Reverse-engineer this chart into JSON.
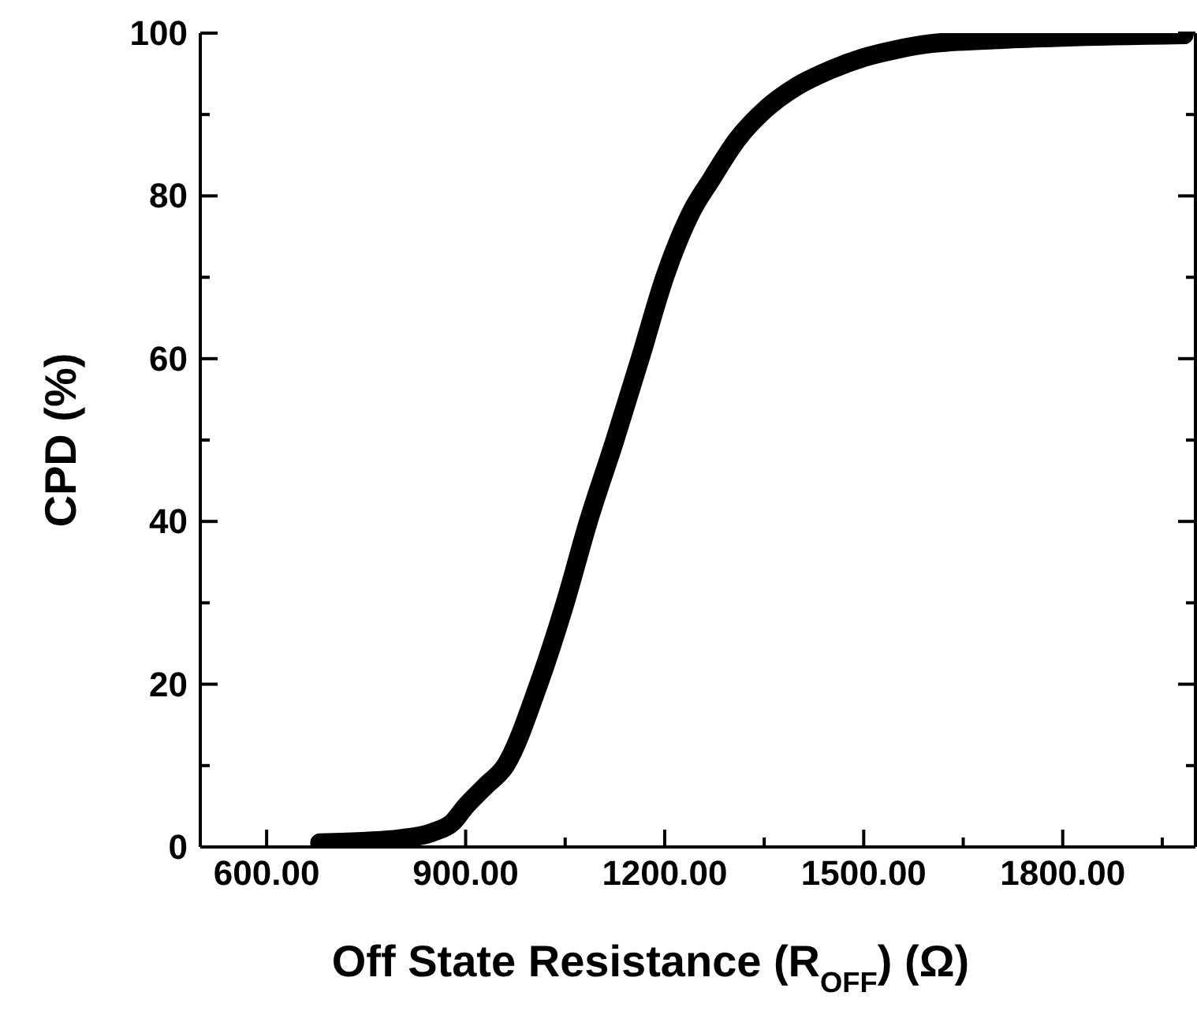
{
  "chart_data": {
    "type": "line",
    "xlabel": "Off State Resistance (R$_{OFF}$) (Ω)",
    "ylabel": "CPD (%)",
    "xlim": [
      500,
      2000
    ],
    "xticks": [
      {
        "value": 600,
        "label": "600.00"
      },
      {
        "value": 750,
        "label": null
      },
      {
        "value": 900,
        "label": "900.00"
      },
      {
        "value": 1050,
        "label": null
      },
      {
        "value": 1200,
        "label": "1200.00"
      },
      {
        "value": 1350,
        "label": null
      },
      {
        "value": 1500,
        "label": "1500.00"
      },
      {
        "value": 1650,
        "label": null
      },
      {
        "value": 1800,
        "label": "1800.00"
      },
      {
        "value": 1950,
        "label": null
      }
    ],
    "ylim": [
      0,
      100
    ],
    "yticks": [
      0,
      {
        "value": 10,
        "label": null
      },
      20,
      {
        "value": 30,
        "label": null
      },
      40,
      {
        "value": 50,
        "label": null
      },
      60,
      {
        "value": 70,
        "label": null
      },
      80,
      {
        "value": 90,
        "label": null
      },
      100
    ],
    "marker": "none",
    "line_style": "solid",
    "series": [
      {
        "color": "#000000",
        "x": [
          680,
          750,
          800,
          850,
          880,
          900,
          930,
          960,
          1010,
          1050,
          1085,
          1125,
          1163,
          1200,
          1240,
          1270,
          1310,
          1350,
          1400,
          1450,
          1500,
          1550,
          1600,
          1700,
          1800,
          1983
        ],
        "values": [
          0.5,
          0.7,
          1,
          1.8,
          3,
          5,
          7.5,
          10,
          20,
          30,
          40,
          50,
          60,
          70,
          78,
          82,
          87,
          90.5,
          93.5,
          95.5,
          97,
          98,
          98.7,
          99.2,
          99.5,
          99.8
        ]
      }
    ]
  }
}
